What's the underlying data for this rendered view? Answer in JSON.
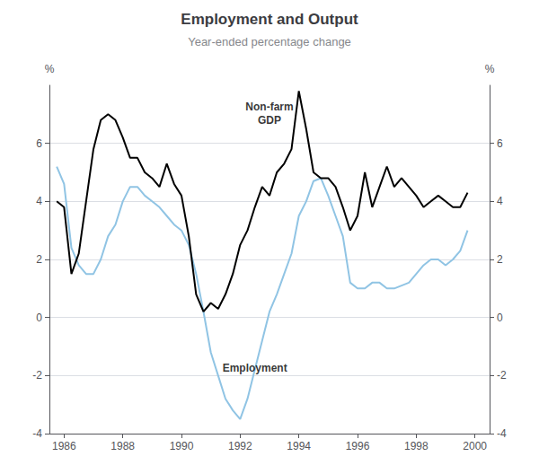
{
  "chart_data": {
    "type": "line",
    "title": "Employment and Output",
    "subtitle": "Year-ended percentage change",
    "ylabel": "%",
    "y2label": "%",
    "xlim": [
      1985.5,
      2000.5
    ],
    "xticks": [
      1986,
      1988,
      1990,
      1992,
      1994,
      1996,
      1998,
      2000
    ],
    "ylim": [
      -4,
      8
    ],
    "yticks": [
      -4,
      -2,
      0,
      2,
      4,
      6
    ],
    "y2lim": [
      -4,
      8
    ],
    "y2ticks": [
      -4,
      -2,
      0,
      2,
      4,
      6
    ],
    "grid": true,
    "x": [
      1985.75,
      1986.0,
      1986.25,
      1986.5,
      1986.75,
      1987.0,
      1987.25,
      1987.5,
      1987.75,
      1988.0,
      1988.25,
      1988.5,
      1988.75,
      1989.0,
      1989.25,
      1989.5,
      1989.75,
      1990.0,
      1990.25,
      1990.5,
      1990.75,
      1991.0,
      1991.25,
      1991.5,
      1991.75,
      1992.0,
      1992.25,
      1992.5,
      1992.75,
      1993.0,
      1993.25,
      1993.5,
      1993.75,
      1994.0,
      1994.25,
      1994.5,
      1994.75,
      1995.0,
      1995.25,
      1995.5,
      1995.75,
      1996.0,
      1996.25,
      1996.5,
      1996.75,
      1997.0,
      1997.25,
      1997.5,
      1997.75,
      1998.0,
      1998.25,
      1998.5,
      1998.75,
      1999.0,
      1999.25,
      1999.5,
      1999.75
    ],
    "series": [
      {
        "color": "#90c4e4",
        "values": [
          5.2,
          4.6,
          2.4,
          1.8,
          1.5,
          1.5,
          2.0,
          2.8,
          3.2,
          4.0,
          4.5,
          4.5,
          4.2,
          4.0,
          3.8,
          3.5,
          3.2,
          3.0,
          2.5,
          1.5,
          0.2,
          -1.2,
          -2.0,
          -2.8,
          -3.2,
          -3.5,
          -2.8,
          -1.8,
          -0.8,
          0.2,
          0.8,
          1.5,
          2.2,
          3.5,
          4.0,
          4.7,
          4.8,
          4.2,
          3.5,
          2.8,
          1.2,
          1.0,
          1.0,
          1.2,
          1.2,
          1.0,
          1.0,
          1.1,
          1.2,
          1.5,
          1.8,
          2.0,
          2.0,
          1.8,
          2.0,
          2.3,
          3.0
        ]
      },
      {
        "color": "#000000",
        "values": [
          4.0,
          3.8,
          1.5,
          2.2,
          4.0,
          5.8,
          6.8,
          7.0,
          6.8,
          6.2,
          5.5,
          5.5,
          5.0,
          4.8,
          4.5,
          5.3,
          4.6,
          4.2,
          2.8,
          0.8,
          0.2,
          0.5,
          0.3,
          0.8,
          1.5,
          2.5,
          3.0,
          3.8,
          4.5,
          4.2,
          5.0,
          5.3,
          5.8,
          7.8,
          6.5,
          5.0,
          4.8,
          4.8,
          4.5,
          3.8,
          3.0,
          3.5,
          5.0,
          3.8,
          4.5,
          5.2,
          4.5,
          4.8,
          4.5,
          4.2,
          3.8,
          4.0,
          4.2,
          4.0,
          3.8,
          3.8,
          4.3
        ]
      }
    ],
    "annotations": [
      {
        "text": "Non-farm\nGDP",
        "x": 1993.0,
        "y": 7.5
      },
      {
        "text": "Employment",
        "x": 1992.5,
        "y": -1.5
      }
    ]
  }
}
